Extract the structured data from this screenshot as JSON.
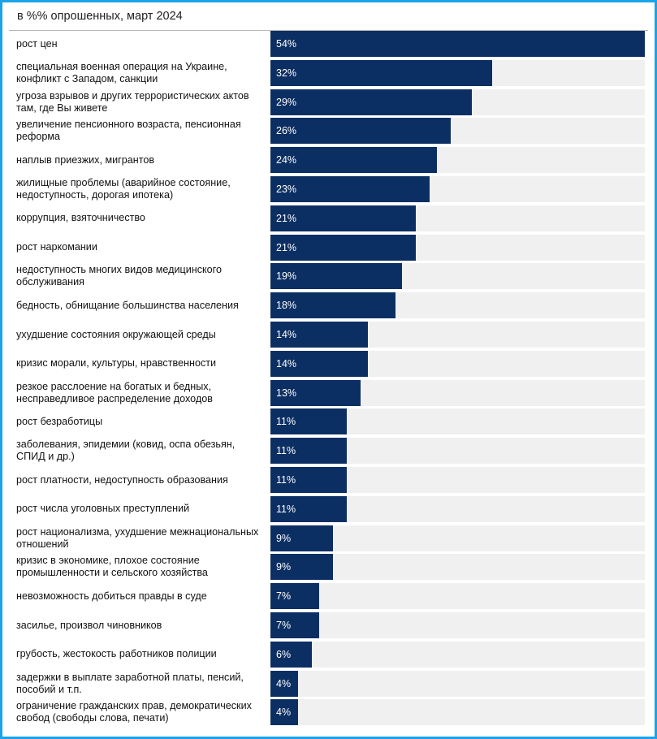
{
  "subtitle": "в %% опрошенных, март 2024",
  "colors": {
    "bar": "#0c2f63",
    "track": "#f0f0f0",
    "border": "#1aa3e8",
    "label_text": "#111111",
    "value_text": "#ffffff"
  },
  "chart_data": {
    "type": "bar",
    "orientation": "horizontal",
    "subtitle": "в %% опрошенных, март 2024",
    "xlim": [
      0,
      54
    ],
    "grid": false,
    "categories": [
      "рост цен",
      "специальная военная операция на Украине, конфликт с Западом, санкции",
      "угроза взрывов и других террористических актов там, где Вы живете",
      "увеличение пенсионного возраста, пенсионная реформа",
      "наплыв приезжих, мигрантов",
      "жилищные проблемы (аварийное состояние, недоступность, дорогая ипотека)",
      "коррупция, взяточничество",
      "рост наркомании",
      "недоступность многих видов медицинского обслуживания",
      "бедность, обнищание большинства населения",
      "ухудшение состояния окружающей среды",
      "кризис морали, культуры, нравственности",
      "резкое расслоение на богатых и бедных, несправедливое распределение доходов",
      "рост безработицы",
      "заболевания, эпидемии (ковид, оспа обезьян, СПИД и др.)",
      "рост платности, недоступность образования",
      "рост числа уголовных преступлений",
      "рост национализма, ухудшение межнациональных отношений",
      "кризис в экономике, плохое состояние промышленности и сельского хозяйства",
      "невозможность добиться правды в суде",
      "засилье, произвол чиновников",
      "грубость, жестокость работников полиции",
      "задержки в выплате заработной платы, пенсий, пособий и т.п.",
      "ограничение гражданских прав, демократических свобод (свободы слова, печати)"
    ],
    "values": [
      54,
      32,
      29,
      26,
      24,
      23,
      21,
      21,
      19,
      18,
      14,
      14,
      13,
      11,
      11,
      11,
      11,
      9,
      9,
      7,
      7,
      6,
      4,
      4
    ],
    "value_labels": [
      "54%",
      "32%",
      "29%",
      "26%",
      "24%",
      "23%",
      "21%",
      "21%",
      "19%",
      "18%",
      "14%",
      "14%",
      "13%",
      "11%",
      "11%",
      "11%",
      "11%",
      "9%",
      "9%",
      "7%",
      "7%",
      "6%",
      "4%",
      "4%"
    ]
  }
}
